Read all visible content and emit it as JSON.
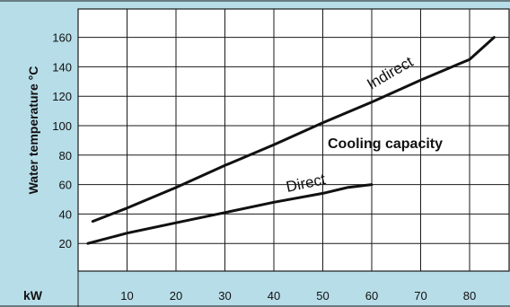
{
  "chart_data": {
    "type": "line",
    "ylabel": "Water temperature °C",
    "xlabel": "kW",
    "annotation": "Cooling capacity",
    "xlim": [
      0,
      85
    ],
    "ylim": [
      0,
      175
    ],
    "x_ticks": [
      10,
      20,
      30,
      40,
      50,
      60,
      70,
      80
    ],
    "y_ticks": [
      20,
      40,
      60,
      80,
      100,
      120,
      140,
      160
    ],
    "grid": true,
    "series": [
      {
        "name": "Indirect",
        "x": [
          3,
          10,
          20,
          30,
          40,
          50,
          60,
          70,
          80,
          85
        ],
        "y": [
          35,
          44,
          58,
          73,
          87,
          102,
          116,
          131,
          145,
          160
        ]
      },
      {
        "name": "Direct",
        "x": [
          2,
          10,
          20,
          30,
          40,
          50,
          55,
          60
        ],
        "y": [
          20,
          27,
          34,
          41,
          48,
          54,
          58,
          60
        ]
      }
    ]
  },
  "colors": {
    "background": "#b7dde8",
    "plot_background": "#ffffff",
    "grid": "#1a1a1a",
    "series": "#111111"
  }
}
